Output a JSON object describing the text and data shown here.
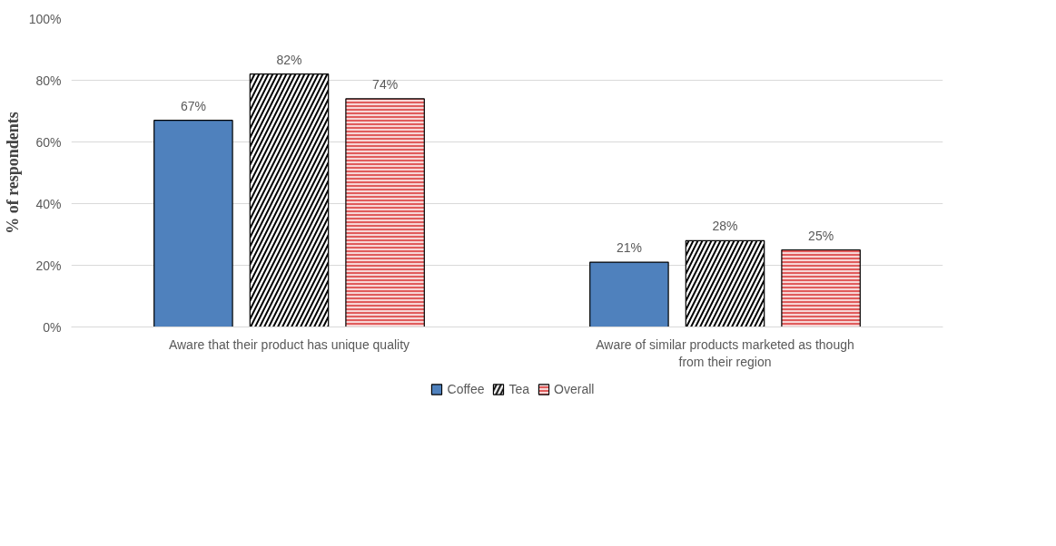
{
  "chart_data": {
    "type": "bar",
    "ylabel": "% of respondents",
    "categories": [
      "Aware that their product has unique quality",
      "Aware of similar products marketed as though from their region"
    ],
    "series": [
      {
        "name": "Coffee",
        "color": "#4f81bd",
        "values": [
          67,
          21
        ],
        "value_labels": [
          "67%",
          "21%"
        ]
      },
      {
        "name": "Tea",
        "color": "#000000",
        "values": [
          82,
          28
        ],
        "value_labels": [
          "82%",
          "28%"
        ]
      },
      {
        "name": "Overall",
        "color": "#e05c5c",
        "values": [
          74,
          25
        ],
        "value_labels": [
          "74%",
          "25%"
        ]
      }
    ],
    "ylim": [
      0,
      100
    ],
    "yticks": [
      {
        "value": 0,
        "label": "0%"
      },
      {
        "value": 20,
        "label": "20%"
      },
      {
        "value": 40,
        "label": "40%"
      },
      {
        "value": 60,
        "label": "60%"
      },
      {
        "value": 80,
        "label": "80%"
      },
      {
        "value": 100,
        "label": "100%"
      }
    ],
    "grid": "y",
    "legend": "bottom"
  }
}
